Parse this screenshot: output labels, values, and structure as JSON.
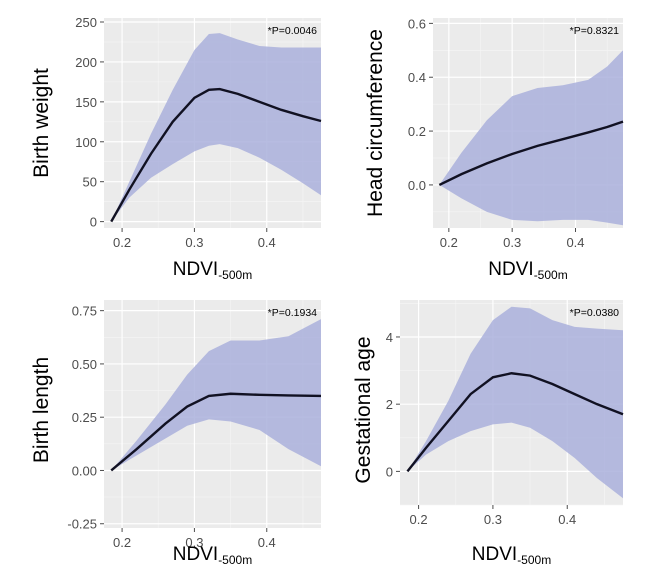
{
  "chart_data": [
    {
      "type": "line",
      "ylabel": "Birth weight",
      "xlabel_main": "NDVI",
      "xlabel_sub": "-500m",
      "annotation": "*P=0.0046",
      "xlim": [
        0.175,
        0.475
      ],
      "ylim": [
        -8,
        255
      ],
      "x_ticks": [
        0.2,
        0.3,
        0.4
      ],
      "x_tick_labels": [
        "0.2",
        "0.3",
        "0.4"
      ],
      "y_ticks": [
        0,
        50,
        100,
        150,
        200,
        250
      ],
      "y_tick_labels": [
        "0",
        "50",
        "100",
        "150",
        "200",
        "250"
      ],
      "grid": true,
      "series": [
        {
          "x": [
            0.185,
            0.21,
            0.24,
            0.27,
            0.3,
            0.32,
            0.335,
            0.36,
            0.39,
            0.42,
            0.45,
            0.475
          ],
          "y": [
            0,
            40,
            85,
            125,
            155,
            165,
            166,
            160,
            150,
            140,
            132,
            126
          ],
          "lower": [
            0,
            30,
            55,
            72,
            88,
            95,
            97,
            92,
            80,
            65,
            48,
            33
          ],
          "upper": [
            0,
            50,
            110,
            165,
            215,
            235,
            236,
            228,
            220,
            218,
            218,
            218
          ]
        }
      ]
    },
    {
      "type": "line",
      "ylabel": "Head circumference",
      "xlabel_main": "NDVI",
      "xlabel_sub": "-500m",
      "annotation": "*P=0.8321",
      "xlim": [
        0.175,
        0.475
      ],
      "ylim": [
        -0.16,
        0.62
      ],
      "x_ticks": [
        0.2,
        0.3,
        0.4
      ],
      "x_tick_labels": [
        "0.2",
        "0.3",
        "0.4"
      ],
      "y_ticks": [
        0.0,
        0.2,
        0.4,
        0.6
      ],
      "y_tick_labels": [
        "0.0",
        "0.2",
        "0.4",
        "0.6"
      ],
      "grid": true,
      "series": [
        {
          "x": [
            0.185,
            0.22,
            0.26,
            0.3,
            0.34,
            0.38,
            0.42,
            0.45,
            0.475
          ],
          "y": [
            0,
            0.04,
            0.08,
            0.115,
            0.145,
            0.17,
            0.195,
            0.215,
            0.235
          ],
          "lower": [
            0,
            -0.05,
            -0.1,
            -0.13,
            -0.135,
            -0.13,
            -0.13,
            -0.14,
            -0.15
          ],
          "upper": [
            0,
            0.12,
            0.24,
            0.33,
            0.36,
            0.37,
            0.39,
            0.44,
            0.5
          ]
        }
      ]
    },
    {
      "type": "line",
      "ylabel": "Birth length",
      "xlabel_main": "NDVI",
      "xlabel_sub": "-500m",
      "annotation": "*P=0.1934",
      "xlim": [
        0.175,
        0.475
      ],
      "ylim": [
        -0.27,
        0.8
      ],
      "x_ticks": [
        0.2,
        0.3,
        0.4
      ],
      "x_tick_labels": [
        "0.2",
        "0.3",
        "0.4"
      ],
      "y_ticks": [
        -0.25,
        0.0,
        0.25,
        0.5,
        0.75
      ],
      "y_tick_labels": [
        "-0.25",
        "0.00",
        "0.25",
        "0.50",
        "0.75"
      ],
      "grid": true,
      "series": [
        {
          "x": [
            0.185,
            0.22,
            0.26,
            0.29,
            0.32,
            0.35,
            0.39,
            0.43,
            0.475
          ],
          "y": [
            0,
            0.1,
            0.22,
            0.3,
            0.35,
            0.36,
            0.355,
            0.352,
            0.35
          ],
          "lower": [
            0,
            0.07,
            0.15,
            0.21,
            0.24,
            0.23,
            0.19,
            0.1,
            0.02
          ],
          "upper": [
            0,
            0.14,
            0.31,
            0.45,
            0.56,
            0.61,
            0.61,
            0.63,
            0.71
          ]
        }
      ]
    },
    {
      "type": "line",
      "ylabel": "Gestational age",
      "xlabel_main": "NDVI",
      "xlabel_sub": "-500m",
      "annotation": "*P=0.0380",
      "xlim": [
        0.175,
        0.475
      ],
      "ylim": [
        -1.0,
        5.1
      ],
      "x_ticks": [
        0.2,
        0.3,
        0.4
      ],
      "x_tick_labels": [
        "0.2",
        "0.3",
        "0.4"
      ],
      "y_ticks": [
        0,
        2,
        4
      ],
      "y_tick_labels": [
        "0",
        "2",
        "4"
      ],
      "grid": true,
      "series": [
        {
          "x": [
            0.185,
            0.21,
            0.24,
            0.27,
            0.3,
            0.325,
            0.35,
            0.38,
            0.41,
            0.44,
            0.475
          ],
          "y": [
            0,
            0.7,
            1.5,
            2.3,
            2.8,
            2.92,
            2.85,
            2.6,
            2.3,
            2.0,
            1.7
          ],
          "lower": [
            0,
            0.5,
            0.9,
            1.2,
            1.4,
            1.45,
            1.3,
            0.9,
            0.4,
            -0.2,
            -0.8
          ],
          "upper": [
            0,
            0.9,
            2.1,
            3.5,
            4.5,
            4.9,
            4.85,
            4.5,
            4.3,
            4.25,
            4.2
          ]
        }
      ]
    }
  ]
}
